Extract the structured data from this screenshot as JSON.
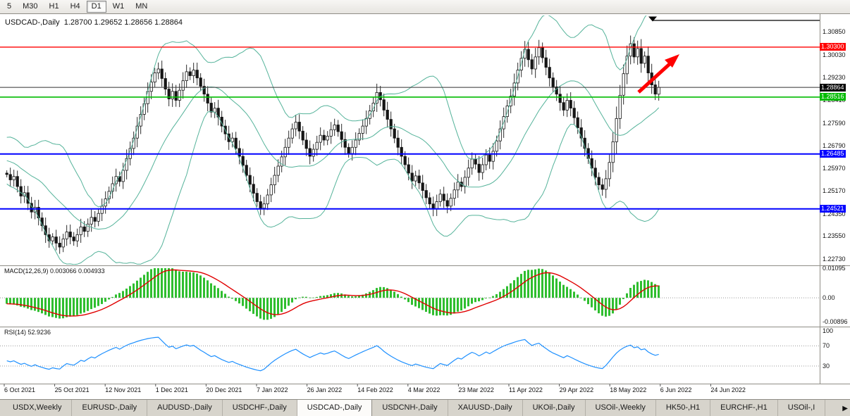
{
  "toolbar": {
    "timeframes": [
      {
        "label": "5",
        "active": false
      },
      {
        "label": "M30",
        "active": false
      },
      {
        "label": "H1",
        "active": false
      },
      {
        "label": "H4",
        "active": false
      },
      {
        "label": "D1",
        "active": true
      },
      {
        "label": "W1",
        "active": false
      },
      {
        "label": "MN",
        "active": false
      }
    ]
  },
  "chart": {
    "title": "USDCAD-,Daily  1.28700 1.29652 1.28656 1.28864"
  },
  "colors": {
    "candle_up": "#ffffff",
    "candle_down": "#151515",
    "candle_outline": "#151515",
    "bollinger": "#55b39a",
    "macd_histogram": "#2fbe2f",
    "macd_signal": "#e00000",
    "rsi_line": "#1e90ff",
    "arrow": "#ff0000",
    "separator": "#8f8d86",
    "dotted_level": "#999999"
  },
  "chart_data": {
    "type": "candlestick",
    "symbol": "USDCAD-",
    "timeframe": "Daily",
    "ohlc_display": {
      "open": "1.28700",
      "high": "1.29652",
      "low": "1.28656",
      "close": "1.28864"
    },
    "ylim": [
      1.2253,
      1.3143
    ],
    "first_open": 1.258,
    "prehistory_closes": [
      1.272,
      1.2695,
      1.2668,
      1.2635,
      1.2602,
      1.2578,
      1.2605,
      1.2638,
      1.2665,
      1.269,
      1.2712,
      1.2688,
      1.2655,
      1.2622,
      1.2595,
      1.257,
      1.2598,
      1.2628,
      1.2652,
      1.2618,
      1.2588,
      1.256,
      1.2585,
      1.2612,
      1.264,
      1.26
    ],
    "closes": [
      1.2575,
      1.2556,
      1.2568,
      1.2532,
      1.2498,
      1.251,
      1.2472,
      1.2441,
      1.2458,
      1.242,
      1.2392,
      1.236,
      1.2338,
      1.2352,
      1.233,
      1.2316,
      1.2345,
      1.237,
      1.2352,
      1.2338,
      1.236,
      1.2388,
      1.2372,
      1.2398,
      1.2422,
      1.2408,
      1.2436,
      1.2462,
      1.2488,
      1.2515,
      1.2542,
      1.2568,
      1.255,
      1.259,
      1.2632,
      1.2668,
      1.2705,
      1.2748,
      1.279,
      1.2828,
      1.2872,
      1.2905,
      1.2938,
      1.2952,
      1.2918,
      1.288,
      1.2845,
      1.2872,
      1.284,
      1.2876,
      1.291,
      1.2942,
      1.2928,
      1.2948,
      1.292,
      1.289,
      1.2862,
      1.283,
      1.2798,
      1.2812,
      1.278,
      1.2748,
      1.272,
      1.2692,
      1.2705,
      1.2668,
      1.264,
      1.2608,
      1.2572,
      1.254,
      1.2508,
      1.2478,
      1.2455,
      1.247,
      1.2502,
      1.2538,
      1.2572,
      1.2605,
      1.2638,
      1.2672,
      1.2705,
      1.2738,
      1.2762,
      1.273,
      1.2698,
      1.2668,
      1.264,
      1.2665,
      1.269,
      1.2715,
      1.2698,
      1.2712,
      1.2735,
      1.2752,
      1.2728,
      1.27,
      1.2672,
      1.265,
      1.2672,
      1.2698,
      1.2722,
      1.2748,
      1.2775,
      1.2802,
      1.283,
      1.2868,
      1.2842,
      1.2805,
      1.2772,
      1.2738,
      1.2705,
      1.2672,
      1.264,
      1.261,
      1.258,
      1.2552,
      1.257,
      1.2545,
      1.2518,
      1.2492,
      1.247,
      1.2452,
      1.2478,
      1.2505,
      1.2482,
      1.2462,
      1.249,
      1.252,
      1.2548,
      1.2532,
      1.2565,
      1.2598,
      1.263,
      1.2612,
      1.2582,
      1.261,
      1.2645,
      1.2622,
      1.2658,
      1.2695,
      1.2738,
      1.2782,
      1.282,
      1.2855,
      1.2902,
      1.2948,
      1.299,
      1.3022,
      1.2985,
      1.2952,
      1.2995,
      1.3028,
      1.2992,
      1.2958,
      1.292,
      1.2888,
      1.2862,
      1.2832,
      1.2805,
      1.284,
      1.2812,
      1.2778,
      1.2742,
      1.2705,
      1.2668,
      1.2632,
      1.2598,
      1.2565,
      1.2538,
      1.2522,
      1.256,
      1.2618,
      1.2692,
      1.2775,
      1.2858,
      1.2935,
      1.2998,
      1.3042,
      1.2995,
      1.3025,
      1.2972,
      1.2998,
      1.2938,
      1.2895,
      1.2862,
      1.28864
    ],
    "y_axis_labels": [
      1.3085,
      1.3003,
      1.2923,
      1.2841,
      1.2759,
      1.2679,
      1.2597,
      1.2517,
      1.2435,
      1.2355,
      1.2273
    ],
    "x_axis_labels": [
      "6 Oct 2021",
      "25 Oct 2021",
      "12 Nov 2021",
      "1 Dec 2021",
      "20 Dec 2021",
      "7 Jan 2022",
      "26 Jan 2022",
      "14 Feb 2022",
      "4 Mar 2022",
      "23 Mar 2022",
      "11 Apr 2022",
      "29 Apr 2022",
      "18 May 2022",
      "6 Jun 2022",
      "24 Jun 2022"
    ],
    "overlays": {
      "bollinger": {
        "period": 20,
        "deviation": 2
      },
      "hlines": [
        {
          "price": 1.303,
          "label": "1.30300",
          "color": "#ff0000",
          "width": 1.4
        },
        {
          "price": 1.28516,
          "label": "1.28516",
          "color": "#00bb00",
          "width": 1.6
        },
        {
          "price": 1.26485,
          "label": "1.26485",
          "color": "#0000ff",
          "width": 2
        },
        {
          "price": 1.24521,
          "label": "1.24521",
          "color": "#0000ff",
          "width": 2
        }
      ],
      "current_price": {
        "price": 1.28864,
        "label": "1.28864",
        "tag_bg": "#000000",
        "line_color": "#333333"
      }
    },
    "indicators": [
      {
        "name": "MACD",
        "label": "MACD(12,26,9) 0.003066 0.004933",
        "ylim": [
          -0.0094,
          0.011
        ],
        "axis_labels": [
          {
            "text": "0.01095",
            "value": 0.01095
          },
          {
            "text": "0.00",
            "value": 0
          },
          {
            "text": "-0.00896",
            "value": -0.00896
          }
        ]
      },
      {
        "name": "RSI",
        "label": "RSI(14) 52.9236",
        "ylim": [
          0,
          100
        ],
        "levels": [
          70,
          30
        ],
        "axis_labels": [
          {
            "text": "100",
            "value": 100
          },
          {
            "text": "70",
            "value": 70
          },
          {
            "text": "30",
            "value": 30
          }
        ]
      }
    ],
    "annotations": {
      "arrow": {
        "color": "#ff0000",
        "direction": "up-right"
      },
      "shift_marker": "▼"
    }
  },
  "tabs": {
    "items": [
      {
        "label": "USDX,Weekly",
        "active": false
      },
      {
        "label": "EURUSD-,Daily",
        "active": false
      },
      {
        "label": "AUDUSD-,Daily",
        "active": false
      },
      {
        "label": "USDCHF-,Daily",
        "active": false
      },
      {
        "label": "USDCAD-,Daily",
        "active": true
      },
      {
        "label": "USDCNH-,Daily",
        "active": false
      },
      {
        "label": "XAUUSD-,Daily",
        "active": false
      },
      {
        "label": "UKOil-,Daily",
        "active": false
      },
      {
        "label": "USOil-,Weekly",
        "active": false
      },
      {
        "label": "HK50-,H1",
        "active": false
      },
      {
        "label": "EURCHF-,H1",
        "active": false
      },
      {
        "label": "USOil-,I",
        "active": false
      }
    ],
    "scroll_right_icon": "▶"
  }
}
